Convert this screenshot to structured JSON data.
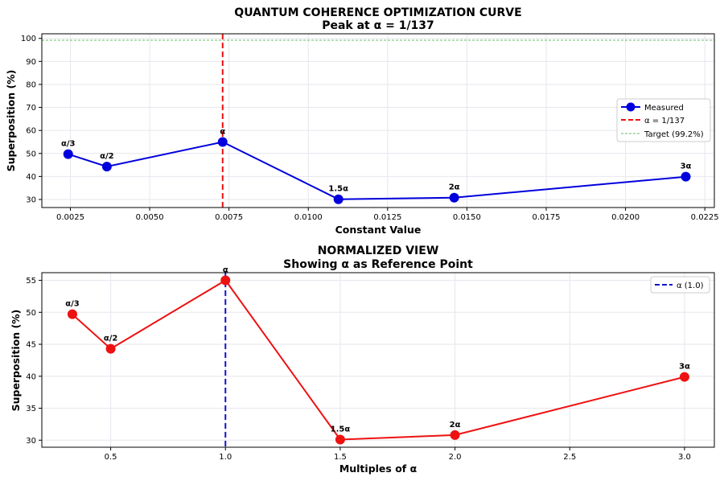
{
  "chart_data": [
    {
      "type": "line",
      "title": "QUANTUM COHERENCE OPTIMIZATION CURVE",
      "subtitle": "Peak at α = 1/137",
      "xlabel": "Constant Value",
      "ylabel": "Superposition (%)",
      "xlim": [
        0.0016,
        0.0228
      ],
      "ylim": [
        26.5,
        102
      ],
      "xticks": [
        0.0025,
        0.005,
        0.0075,
        0.01,
        0.0125,
        0.015,
        0.0175,
        0.02,
        0.0225
      ],
      "xtick_labels": [
        "0.0025",
        "0.0050",
        "0.0075",
        "0.0100",
        "0.0125",
        "0.0150",
        "0.0175",
        "0.0200",
        "0.0225"
      ],
      "yticks": [
        30,
        40,
        50,
        60,
        70,
        80,
        90,
        100
      ],
      "ytick_labels": [
        "30",
        "40",
        "50",
        "60",
        "70",
        "80",
        "90",
        "100"
      ],
      "grid": true,
      "legend": "center-right",
      "series": [
        {
          "name": "Measured",
          "color": "#0000dd",
          "x": [
            0.00243,
            0.00365,
            0.0073,
            0.01095,
            0.0146,
            0.0219
          ],
          "y": [
            49.7,
            44.3,
            55.0,
            30.1,
            30.8,
            39.9
          ],
          "point_labels": [
            "α/3",
            "α/2",
            "α",
            "1.5α",
            "2α",
            "3α"
          ]
        }
      ],
      "reference_lines": [
        {
          "orientation": "vertical",
          "value": 0.0073,
          "name": "α = 1/137",
          "color": "#ee1111",
          "style": "dashed"
        },
        {
          "orientation": "horizontal",
          "value": 99.2,
          "name": "Target (99.2%)",
          "color": "#66bb66",
          "style": "dashed"
        }
      ]
    },
    {
      "type": "line",
      "title": "NORMALIZED VIEW",
      "subtitle": "Showing α as Reference Point",
      "xlabel": "Multiples of α",
      "ylabel": "Superposition (%)",
      "xlim": [
        0.2,
        3.13
      ],
      "ylim": [
        28.9,
        56.2
      ],
      "xticks": [
        0.5,
        1.0,
        1.5,
        2.0,
        2.5,
        3.0
      ],
      "xtick_labels": [
        "0.5",
        "1.0",
        "1.5",
        "2.0",
        "2.5",
        "3.0"
      ],
      "yticks": [
        30,
        35,
        40,
        45,
        50,
        55
      ],
      "ytick_labels": [
        "30",
        "35",
        "40",
        "45",
        "50",
        "55"
      ],
      "grid": true,
      "legend": "top-right",
      "series": [
        {
          "name": "",
          "color": "#ee1111",
          "x": [
            0.333,
            0.5,
            1.0,
            1.5,
            2.0,
            3.0
          ],
          "y": [
            49.7,
            44.3,
            55.0,
            30.1,
            30.8,
            39.9
          ],
          "point_labels": [
            "α/3",
            "α/2",
            "α",
            "1.5α",
            "2α",
            "3α"
          ]
        }
      ],
      "reference_lines": [
        {
          "orientation": "vertical",
          "value": 1.0,
          "name": "α (1.0)",
          "color": "#1111cc",
          "style": "dashed"
        }
      ]
    }
  ]
}
